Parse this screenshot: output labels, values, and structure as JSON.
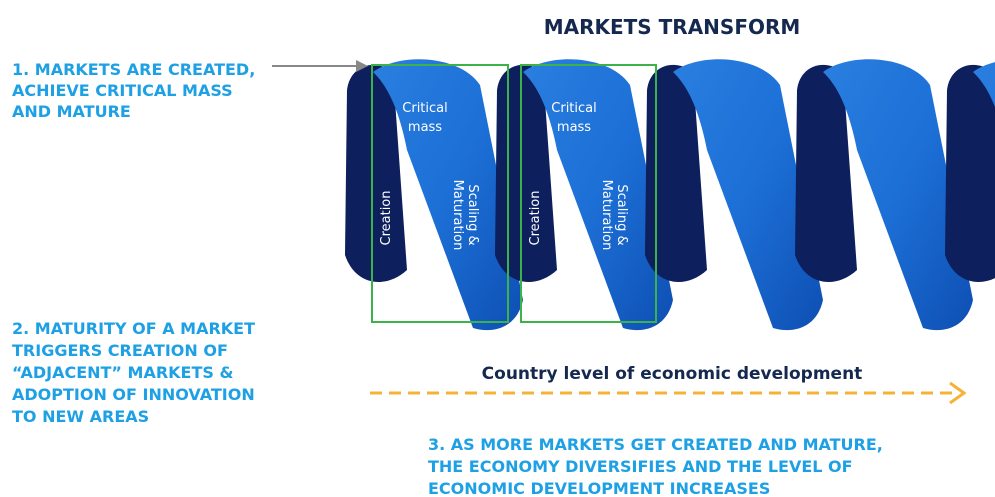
{
  "title": "MARKETS TRANSFORM",
  "point_1": {
    "lines": [
      "1. MARKETS ARE CREATED,",
      "ACHIEVE CRITICAL MASS",
      "AND MATURE"
    ]
  },
  "point_2": {
    "lines": [
      "2. MATURITY OF A MARKET",
      "TRIGGERS CREATION OF",
      "“ADJACENT” MARKETS &",
      "ADOPTION OF INNOVATION",
      "TO NEW AREAS"
    ]
  },
  "point_3": {
    "lines": [
      "3. AS MORE MARKETS GET CREATED AND MATURE,",
      "THE ECONOMY DIVERSIFIES AND THE LEVEL OF",
      "ECONOMIC DEVELOPMENT INCREASES"
    ]
  },
  "arrow_label": "Country level of economic development",
  "stages": [
    {
      "critical_mass": [
        "Critical",
        "mass"
      ],
      "creation": "Creation",
      "scaling": [
        "Scaling &",
        "Maturation"
      ]
    },
    {
      "critical_mass": [
        "Critical",
        "mass"
      ],
      "creation": "Creation",
      "scaling": [
        "Scaling &",
        "Maturation"
      ]
    }
  ]
}
